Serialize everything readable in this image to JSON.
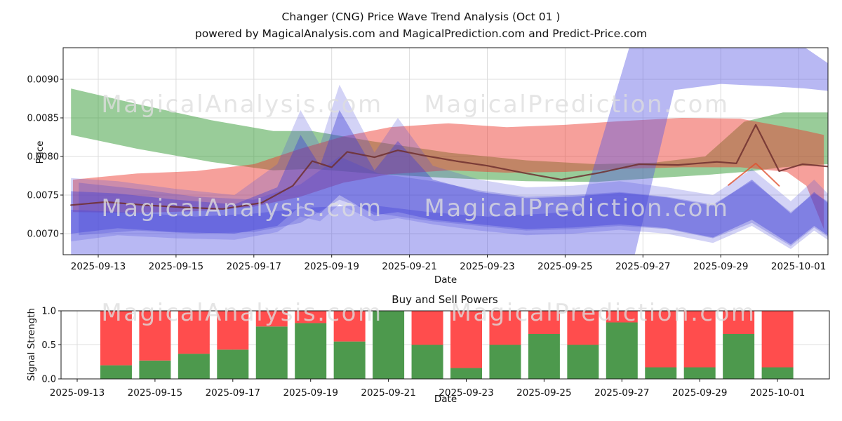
{
  "title": "Changer (CNG) Price Wave Trend Analysis (Oct 01 )",
  "subtitle": "powered by MagicalAnalysis.com and MagicalPrediction.com and Predict-Price.com",
  "watermark_left": "MagicalAnalysis.com",
  "watermark_right": "MagicalPrediction.com",
  "colors": {
    "buy_green": "#4d994d",
    "sell_red": "#ff4d4d",
    "grid": "#dcdcdc",
    "frame": "#1a1a1a",
    "text": "#111111"
  },
  "chart_data": [
    {
      "type": "area",
      "name": "price_wave_trend",
      "xlabel": "Date",
      "ylabel": "Price",
      "x_unit": "days_since_2025-09-12",
      "ylim": [
        0.00689,
        0.00941
      ],
      "grid": true,
      "yticks": [
        {
          "v": 0.007,
          "label": "0.0070"
        },
        {
          "v": 0.0075,
          "label": "0.0075"
        },
        {
          "v": 0.008,
          "label": "0.0080"
        },
        {
          "v": 0.0085,
          "label": "0.0085"
        },
        {
          "v": 0.009,
          "label": "0.0090"
        }
      ],
      "xticks": [
        {
          "d": 1,
          "label": "2025-09-13"
        },
        {
          "d": 3,
          "label": "2025-09-15"
        },
        {
          "d": 5,
          "label": "2025-09-17"
        },
        {
          "d": 7,
          "label": "2025-09-19"
        },
        {
          "d": 9,
          "label": "2025-09-21"
        },
        {
          "d": 11,
          "label": "2025-09-23"
        },
        {
          "d": 13,
          "label": "2025-09-25"
        },
        {
          "d": 15,
          "label": "2025-09-27"
        },
        {
          "d": 17,
          "label": "2025-09-29"
        },
        {
          "d": 19,
          "label": "2025-10-01"
        }
      ],
      "bands": [
        {
          "name": "green-forecast-band",
          "color": "#339933",
          "opacity": 0.5,
          "points": [
            [
              0.3,
              0.00828,
              0.00888
            ],
            [
              2,
              0.0081,
              0.00868
            ],
            [
              3.9,
              0.00793,
              0.00847
            ],
            [
              5.5,
              0.00782,
              0.00833
            ],
            [
              6.5,
              0.00784,
              0.00833
            ],
            [
              8,
              0.00778,
              0.0082
            ],
            [
              10,
              0.00772,
              0.00805
            ],
            [
              12,
              0.00768,
              0.00795
            ],
            [
              13.8,
              0.00767,
              0.0079
            ],
            [
              15.3,
              0.00772,
              0.00792
            ],
            [
              16.6,
              0.00776,
              0.008
            ],
            [
              17.6,
              0.0078,
              0.00845
            ],
            [
              18.6,
              0.00786,
              0.00857
            ],
            [
              19.75,
              0.0079,
              0.00857
            ]
          ]
        },
        {
          "name": "red-forecast-band",
          "color": "#ed392e",
          "opacity": 0.48,
          "points": [
            [
              0.35,
              0.00728,
              0.0077
            ],
            [
              2,
              0.00727,
              0.00778
            ],
            [
              3.5,
              0.00729,
              0.00781
            ],
            [
              5,
              0.00735,
              0.0079
            ],
            [
              6.2,
              0.00748,
              0.0081
            ],
            [
              7.3,
              0.00766,
              0.00826
            ],
            [
              8.5,
              0.00777,
              0.00838
            ],
            [
              10,
              0.00782,
              0.00843
            ],
            [
              11.5,
              0.00779,
              0.00838
            ],
            [
              13,
              0.0078,
              0.00841
            ],
            [
              14.5,
              0.00784,
              0.00846
            ],
            [
              16,
              0.00786,
              0.0085
            ],
            [
              17.5,
              0.00786,
              0.00849
            ],
            [
              18.7,
              0.0078,
              0.00838
            ],
            [
              19.2,
              0.00762,
              0.00833
            ],
            [
              19.65,
              0.00706,
              0.00828
            ]
          ]
        },
        {
          "name": "big-blue-jump-band",
          "color": "#5555e2",
          "opacity": 0.42,
          "points": [
            [
              0.3,
              0.0064,
              0.00731
            ],
            [
              2,
              0.00642,
              0.00727
            ],
            [
              3.5,
              0.00638,
              0.00722
            ],
            [
              5,
              0.00642,
              0.00726
            ],
            [
              6.5,
              0.0065,
              0.00734
            ],
            [
              8,
              0.00652,
              0.00737
            ],
            [
              9.5,
              0.0065,
              0.00728
            ],
            [
              11,
              0.00648,
              0.00722
            ],
            [
              12.5,
              0.0065,
              0.00726
            ],
            [
              13.4,
              0.00652,
              0.0073
            ],
            [
              14.7,
              0.00654,
              0.0095
            ],
            [
              15.8,
              0.00886,
              0.00952
            ],
            [
              17,
              0.00894,
              0.00952
            ],
            [
              18.6,
              0.0089,
              0.0095
            ],
            [
              19.2,
              0.00888,
              0.0094
            ],
            [
              19.75,
              0.00885,
              0.00921
            ]
          ]
        },
        {
          "name": "blue-wave-band-left",
          "color": "#4646cc",
          "opacity": 0.28,
          "points": [
            [
              0.5,
              0.00698,
              0.00766
            ],
            [
              2,
              0.00704,
              0.00758
            ],
            [
              3.5,
              0.007,
              0.00748
            ],
            [
              5,
              0.00702,
              0.00744
            ],
            [
              6.2,
              0.00714,
              0.00764
            ],
            [
              7.2,
              0.00744,
              0.008
            ],
            [
              8.2,
              0.00726,
              0.00778
            ],
            [
              9.6,
              0.00716,
              0.00768
            ],
            [
              10.8,
              0.0071,
              0.00756
            ],
            [
              12,
              0.00704,
              0.00748
            ],
            [
              13.2,
              0.00706,
              0.0075
            ],
            [
              14.4,
              0.0071,
              0.00754
            ],
            [
              15.6,
              0.00706,
              0.00748
            ],
            [
              16.8,
              0.00694,
              0.00738
            ],
            [
              17.8,
              0.00714,
              0.00768
            ],
            [
              18.8,
              0.00684,
              0.00728
            ],
            [
              19.4,
              0.00708,
              0.00752
            ],
            [
              19.75,
              0.00696,
              0.00742
            ]
          ]
        },
        {
          "name": "blue-wave-band-outer",
          "color": "#5050dc",
          "opacity": 0.25,
          "points": [
            [
              0.3,
              0.0069,
              0.00772
            ],
            [
              1.5,
              0.00698,
              0.00768
            ],
            [
              3,
              0.00694,
              0.00758
            ],
            [
              4.5,
              0.00692,
              0.0075
            ],
            [
              5.6,
              0.00702,
              0.0079
            ],
            [
              6.2,
              0.00722,
              0.0086
            ],
            [
              6.7,
              0.00716,
              0.00815
            ],
            [
              7.2,
              0.00738,
              0.00893
            ],
            [
              8.1,
              0.00716,
              0.00805
            ],
            [
              8.7,
              0.0072,
              0.0085
            ],
            [
              9.6,
              0.00712,
              0.00788
            ],
            [
              10.8,
              0.00704,
              0.0077
            ],
            [
              12,
              0.00698,
              0.0076
            ],
            [
              13.2,
              0.007,
              0.00762
            ],
            [
              14.4,
              0.00705,
              0.00768
            ],
            [
              15.6,
              0.007,
              0.0076
            ],
            [
              16.8,
              0.00688,
              0.0075
            ],
            [
              17.8,
              0.0071,
              0.00784
            ],
            [
              18.8,
              0.0068,
              0.00742
            ],
            [
              19.4,
              0.00704,
              0.0077
            ],
            [
              19.75,
              0.00692,
              0.00752
            ]
          ]
        },
        {
          "name": "blue-wave-band-inner",
          "color": "#3f3fd8",
          "opacity": 0.4,
          "points": [
            [
              0.3,
              0.007,
              0.00755
            ],
            [
              1.5,
              0.00707,
              0.00752
            ],
            [
              3,
              0.00702,
              0.00744
            ],
            [
              4.5,
              0.007,
              0.00738
            ],
            [
              5.6,
              0.0071,
              0.0076
            ],
            [
              6.2,
              0.00736,
              0.00828
            ],
            [
              6.7,
              0.00726,
              0.00788
            ],
            [
              7.2,
              0.0075,
              0.0086
            ],
            [
              8.1,
              0.00724,
              0.00782
            ],
            [
              8.7,
              0.00728,
              0.0082
            ],
            [
              9.6,
              0.00718,
              0.0077
            ],
            [
              10.8,
              0.00712,
              0.00754
            ],
            [
              12,
              0.00706,
              0.00746
            ],
            [
              13.2,
              0.00708,
              0.00748
            ],
            [
              14.4,
              0.00712,
              0.00753
            ],
            [
              15.6,
              0.00707,
              0.00747
            ],
            [
              16.8,
              0.00695,
              0.00736
            ],
            [
              17.8,
              0.00718,
              0.0077
            ],
            [
              18.8,
              0.00686,
              0.00726
            ],
            [
              19.4,
              0.0071,
              0.00754
            ],
            [
              19.75,
              0.00698,
              0.0074
            ]
          ]
        }
      ],
      "lines": [
        {
          "name": "price-trend-line",
          "color": "#6e2f2f",
          "opacity": 0.85,
          "width": 2.2,
          "points": [
            [
              0.3,
              0.00737
            ],
            [
              1.2,
              0.00741
            ],
            [
              2.2,
              0.00737
            ],
            [
              3.2,
              0.00734
            ],
            [
              4.2,
              0.00732
            ],
            [
              5.2,
              0.0074
            ],
            [
              6,
              0.00762
            ],
            [
              6.5,
              0.00794
            ],
            [
              7,
              0.00786
            ],
            [
              7.4,
              0.00806
            ],
            [
              8.1,
              0.00799
            ],
            [
              8.7,
              0.00808
            ],
            [
              9.4,
              0.00801
            ],
            [
              10.2,
              0.00794
            ],
            [
              11,
              0.00788
            ],
            [
              11.9,
              0.00779
            ],
            [
              12.9,
              0.0077
            ],
            [
              13.9,
              0.00779
            ],
            [
              14.9,
              0.0079
            ],
            [
              15.9,
              0.00789
            ],
            [
              16.9,
              0.00793
            ],
            [
              17.4,
              0.00791
            ],
            [
              17.9,
              0.00841
            ],
            [
              18.5,
              0.00781
            ],
            [
              19.1,
              0.0079
            ],
            [
              19.75,
              0.00787
            ]
          ]
        },
        {
          "name": "signal-spike-line",
          "color": "#e05030",
          "opacity": 0.8,
          "width": 2,
          "points": [
            [
              17.2,
              0.00763
            ],
            [
              17.9,
              0.00791
            ],
            [
              18.5,
              0.00762
            ]
          ]
        }
      ]
    },
    {
      "type": "bar",
      "name": "buy_sell_powers",
      "title": "Buy and Sell Powers",
      "xlabel": "Date",
      "ylabel": "Signal Strength",
      "ylim": [
        0,
        1.0
      ],
      "grid": true,
      "yticks": [
        {
          "v": 0.0,
          "label": "0.0"
        },
        {
          "v": 0.5,
          "label": "0.5"
        },
        {
          "v": 1.0,
          "label": "1.0"
        }
      ],
      "xticks": [
        {
          "d": 1,
          "label": "2025-09-13"
        },
        {
          "d": 3,
          "label": "2025-09-15"
        },
        {
          "d": 5,
          "label": "2025-09-17"
        },
        {
          "d": 7,
          "label": "2025-09-19"
        },
        {
          "d": 9,
          "label": "2025-09-21"
        },
        {
          "d": 11,
          "label": "2025-09-23"
        },
        {
          "d": 13,
          "label": "2025-09-25"
        },
        {
          "d": 15,
          "label": "2025-09-27"
        },
        {
          "d": 17,
          "label": "2025-09-29"
        },
        {
          "d": 19,
          "label": "2025-10-01"
        }
      ],
      "categories": [
        "2025-09-14",
        "2025-09-15",
        "2025-09-16",
        "2025-09-17",
        "2025-09-18",
        "2025-09-19",
        "2025-09-20",
        "2025-09-21",
        "2025-09-22",
        "2025-09-23",
        "2025-09-24",
        "2025-09-25",
        "2025-09-26",
        "2025-09-27",
        "2025-09-28",
        "2025-09-29",
        "2025-09-30",
        "2025-10-01"
      ],
      "series": [
        {
          "name": "buy_power",
          "color": "#4d994d",
          "values": [
            0.2,
            0.27,
            0.37,
            0.43,
            0.77,
            0.82,
            0.55,
            1.0,
            0.5,
            0.16,
            0.5,
            0.66,
            0.5,
            0.83,
            0.17,
            0.17,
            0.66,
            0.17
          ]
        },
        {
          "name": "sell_power",
          "color": "#ff4d4d",
          "values": [
            0.8,
            0.73,
            0.63,
            0.57,
            0.23,
            0.18,
            0.45,
            0.0,
            0.5,
            0.84,
            0.5,
            0.34,
            0.5,
            0.17,
            0.83,
            0.83,
            0.34,
            0.83
          ]
        }
      ]
    }
  ]
}
